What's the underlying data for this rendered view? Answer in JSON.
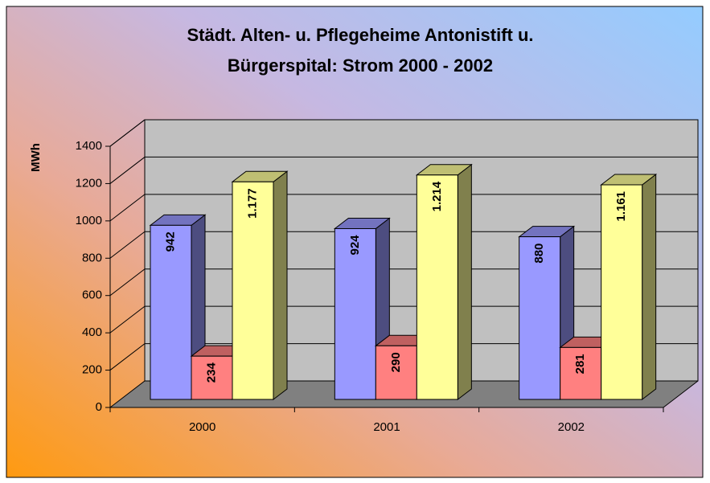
{
  "chart_data": {
    "type": "bar3d",
    "title": [
      "Städt. Alten- u. Pflegeheime Antonistift u.",
      "Bürgerspital: Strom 2000 - 2002"
    ],
    "y_label": "MWh",
    "categories": [
      "2000",
      "2001",
      "2002"
    ],
    "series": [
      {
        "color": "#9999ff",
        "values": [
          942,
          924,
          880
        ]
      },
      {
        "color": "#ff8080",
        "values": [
          234,
          290,
          281
        ]
      },
      {
        "color": "#ffff99",
        "values": [
          1177,
          1214,
          1161
        ],
        "value_labels": [
          "1.177",
          "1.214",
          "1.161"
        ]
      }
    ],
    "ylim": [
      0,
      1400
    ],
    "yticks": [
      0,
      200,
      400,
      600,
      800,
      1000,
      1200,
      1400
    ],
    "grid": true
  }
}
